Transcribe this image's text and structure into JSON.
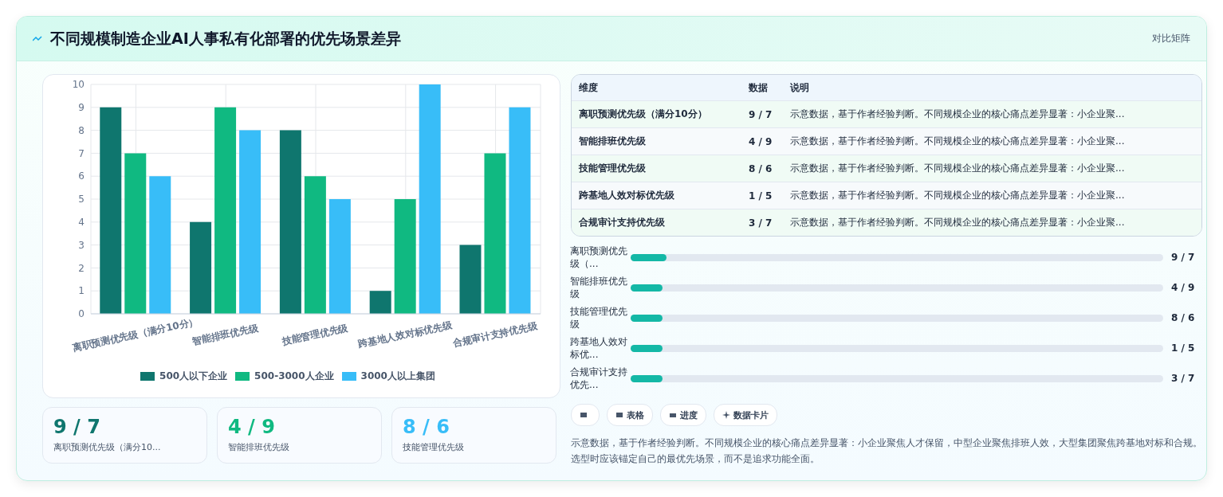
{
  "chart_data": [
    {
      "type": "bar",
      "title": "不同规模制造企业AI人事私有化部署的优先场景差异",
      "annotations": [
        "对比矩阵"
      ],
      "categories": [
        "离职预测优先级（满分10分）",
        "智能排班优先级",
        "技能管理优先级",
        "跨基地人效对标优先级",
        "合规审计支持优先级"
      ],
      "series": [
        {
          "name": "500人以下企业",
          "color": "#0f766e",
          "values": [
            9,
            4,
            8,
            1,
            3
          ]
        },
        {
          "name": "500-3000人企业",
          "color": "#10b981",
          "values": [
            7,
            9,
            6,
            5,
            7
          ]
        },
        {
          "name": "3000人以上集团",
          "color": "#38bdf8",
          "values": [
            6,
            8,
            5,
            10,
            9
          ]
        }
      ],
      "ylim": [
        0,
        10
      ],
      "yticks": [
        0,
        1,
        2,
        3,
        4,
        5,
        6,
        7,
        8,
        9,
        10
      ],
      "grid": true,
      "legend": "bottom"
    },
    {
      "type": "other",
      "annotations": [
        "维度",
        "数据",
        "说明",
        "离职预测优先级（满分10分）",
        "9 / 7",
        "示意数据，基于作者经验判断。不同规模企业的核心痛点差异显著：小企业聚...",
        "智能排班优先级",
        "4 / 9",
        "示意数据，基于作者经验判断。不同规模企业的核心痛点差异显著：小企业聚...",
        "技能管理优先级",
        "8 / 6",
        "示意数据，基于作者经验判断。不同规模企业的核心痛点差异显著：小企业聚...",
        "跨基地人效对标优先级",
        "1 / 5",
        "示意数据，基于作者经验判断。不同规模企业的核心痛点差异显著：小企业聚...",
        "合规审计支持优先级",
        "3 / 7",
        "示意数据，基于作者经验判断。不同规模企业的核心痛点差异显著：小企业聚..."
      ]
    },
    {
      "type": "other",
      "annotations": [
        "离职预测优先级（...",
        "9 / 7",
        "智能排班优先级",
        "4 / 9",
        "技能管理优先级",
        "8 / 6",
        "跨基地人效对标优...",
        "1 / 5",
        "合规审计支持优先...",
        "3 / 7"
      ]
    },
    {
      "type": "other",
      "annotations": [
        "表格",
        "进度",
        "数据卡片"
      ]
    },
    {
      "type": "other",
      "annotations": [
        "9 / 7",
        "离职预测优先级（满分10...",
        "4 / 9",
        "智能排班优先级",
        "8 / 6",
        "技能管理优先级"
      ]
    },
    {
      "type": "other",
      "annotations": [
        "示意数据，基于作者经验判断。不同规模企业的核心痛点差异显著：小企业聚焦人才保留，中型企业聚焦排班人效，大型集团聚焦跨基地对标和合规。选型时应该锚定自己的最优先场景，而不是追求功能全面。"
      ]
    }
  ]
}
